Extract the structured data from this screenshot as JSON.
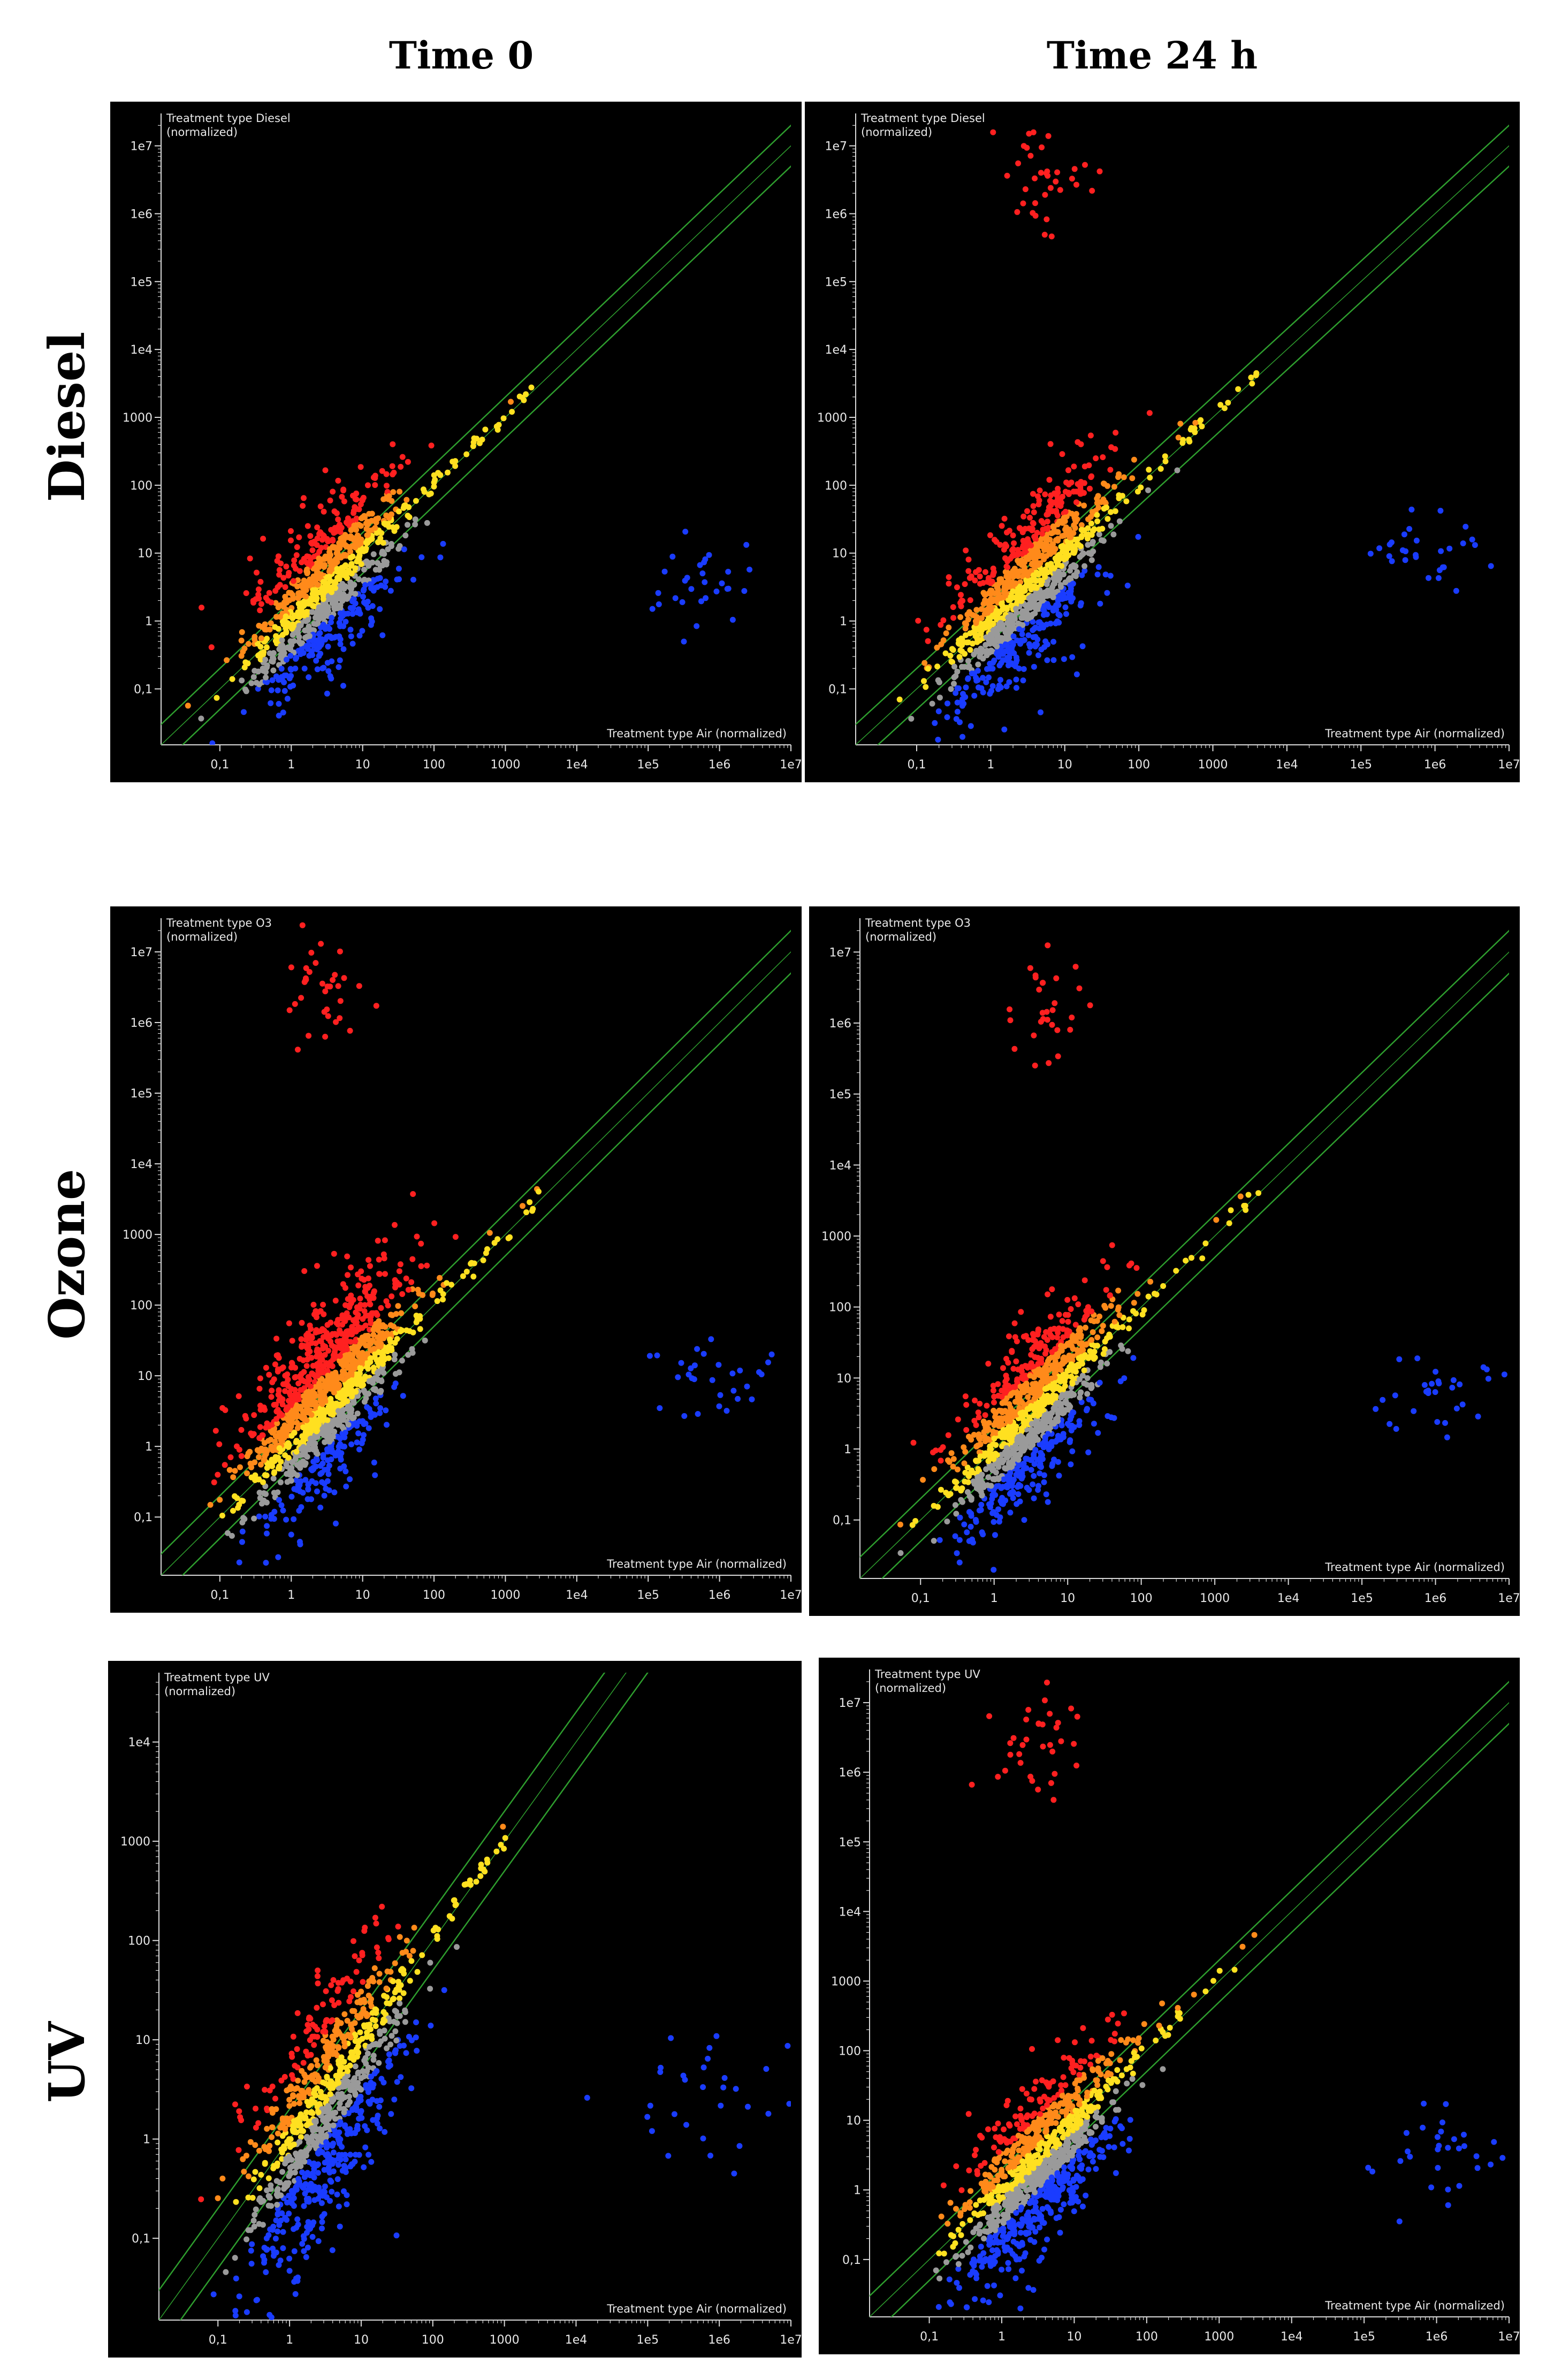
{
  "column_headers": [
    "Time 0",
    "Time 24 h"
  ],
  "row_labels": [
    "Diesel",
    "Ozone",
    "UV"
  ],
  "colors": {
    "background": "#000000",
    "axis": "#d9d9d9",
    "diagonal": "#2e9e2e",
    "high": "#ff2020",
    "mid_high": "#ff8a1a",
    "mid": "#ffe020",
    "neutral": "#9a9a9a",
    "low": "#1a3cff"
  },
  "chart_data": [
    {
      "type": "scatter",
      "row": "Diesel",
      "column": "Time 0",
      "y_label": "Treatment type Diesel\n(normalized)",
      "x_label": "Treatment type Air (normalized)",
      "x_ticks": [
        "0,1",
        "1",
        "10",
        "100",
        "1000",
        "1e4",
        "1e5",
        "1e6",
        "1e7"
      ],
      "y_ticks": [
        "1e7",
        "1e6",
        "1e5",
        "1e4",
        "1000",
        "100",
        "10",
        "1",
        "0,1"
      ],
      "xlim": [
        0.015,
        10000000
      ],
      "ylim": [
        0.015,
        30000000
      ],
      "scale": "log",
      "diagonal_band": true,
      "clusters": [
        {
          "name": "main",
          "x_center": 3,
          "x_spread": 0.55,
          "y_center": 3,
          "y_spread": 0.55,
          "count": 900
        },
        {
          "name": "upper-diagonal",
          "x_from": 10,
          "x_to": 2500,
          "count": 40
        },
        {
          "name": "right-outliers",
          "x_center": 500000,
          "x_spread": 0.45,
          "y_center": 3,
          "y_spread": 0.35,
          "count": 30
        }
      ]
    },
    {
      "type": "scatter",
      "row": "Diesel",
      "column": "Time 24 h",
      "y_label": "Treatment type Diesel\n(normalized)",
      "x_label": "Treatment type Air (normalized)",
      "x_ticks": [
        "0,1",
        "1",
        "10",
        "100",
        "1000",
        "1e4",
        "1e5",
        "1e6",
        "1e7"
      ],
      "y_ticks": [
        "1e7",
        "1e6",
        "1e5",
        "1e4",
        "1000",
        "100",
        "10",
        "1",
        "0,1"
      ],
      "xlim": [
        0.015,
        10000000
      ],
      "ylim": [
        0.015,
        30000000
      ],
      "scale": "log",
      "diagonal_band": true,
      "clusters": [
        {
          "name": "main",
          "x_center": 3,
          "x_spread": 0.55,
          "y_center": 3,
          "y_spread": 0.55,
          "count": 1100
        },
        {
          "name": "upper-diagonal",
          "x_from": 10,
          "x_to": 4000,
          "count": 45
        },
        {
          "name": "top-outliers",
          "x_center": 5,
          "x_spread": 0.3,
          "y_center": 3000000,
          "y_spread": 0.4,
          "count": 35
        },
        {
          "name": "right-outliers",
          "x_center": 800000,
          "x_spread": 0.5,
          "y_center": 10,
          "y_spread": 0.3,
          "count": 30
        }
      ]
    },
    {
      "type": "scatter",
      "row": "Ozone",
      "column": "Time 0",
      "y_label": "Treatment type O3\n(normalized)",
      "x_label": "Treatment type Air (normalized)",
      "x_ticks": [
        "0,1",
        "1",
        "10",
        "100",
        "1000",
        "1e4",
        "1e5",
        "1e6",
        "1e7"
      ],
      "y_ticks": [
        "1e7",
        "1e6",
        "1e5",
        "1e4",
        "1000",
        "100",
        "10",
        "1",
        "0,1"
      ],
      "xlim": [
        0.015,
        10000000
      ],
      "ylim": [
        0.015,
        30000000
      ],
      "scale": "log",
      "diagonal_band": true,
      "clusters": [
        {
          "name": "main",
          "x_center": 3,
          "x_spread": 0.55,
          "y_center": 5,
          "y_spread": 0.6,
          "count": 1300
        },
        {
          "name": "upper-diagonal",
          "x_from": 10,
          "x_to": 4000,
          "count": 45
        },
        {
          "name": "top-outliers",
          "x_center": 3,
          "x_spread": 0.3,
          "y_center": 3000000,
          "y_spread": 0.4,
          "count": 35
        },
        {
          "name": "right-outliers",
          "x_center": 800000,
          "x_spread": 0.5,
          "y_center": 10,
          "y_spread": 0.35,
          "count": 30
        }
      ]
    },
    {
      "type": "scatter",
      "row": "Ozone",
      "column": "Time 24 h",
      "y_label": "Treatment type O3\n(normalized)",
      "x_label": "Treatment type Air (normalized)",
      "x_ticks": [
        "0,1",
        "1",
        "10",
        "100",
        "1000",
        "1e4",
        "1e5",
        "1e6",
        "1e7"
      ],
      "y_ticks": [
        "1e7",
        "1e6",
        "1e5",
        "1e4",
        "1000",
        "100",
        "10",
        "1",
        "0,1"
      ],
      "xlim": [
        0.015,
        10000000
      ],
      "ylim": [
        0.015,
        30000000
      ],
      "scale": "log",
      "diagonal_band": true,
      "clusters": [
        {
          "name": "main",
          "x_center": 3,
          "x_spread": 0.55,
          "y_center": 3,
          "y_spread": 0.55,
          "count": 1100
        },
        {
          "name": "upper-diagonal",
          "x_from": 10,
          "x_to": 5000,
          "count": 40
        },
        {
          "name": "top-outliers",
          "x_center": 5,
          "x_spread": 0.3,
          "y_center": 2000000,
          "y_spread": 0.45,
          "count": 30
        },
        {
          "name": "right-outliers",
          "x_center": 1000000,
          "x_spread": 0.5,
          "y_center": 5,
          "y_spread": 0.3,
          "count": 30
        }
      ]
    },
    {
      "type": "scatter",
      "row": "UV",
      "column": "Time 0",
      "y_label": "Treatment type UV\n(normalized)",
      "x_label": "Treatment type Air (normalized)",
      "x_ticks": [
        "0,1",
        "1",
        "10",
        "100",
        "1000",
        "1e4",
        "1e5",
        "1e6",
        "1e7"
      ],
      "y_ticks": [
        "1e4",
        "1000",
        "100",
        "10",
        "1",
        "0,1"
      ],
      "xlim": [
        0.015,
        10000000
      ],
      "ylim": [
        0.015,
        50000
      ],
      "scale": "log",
      "diagonal_band": true,
      "clusters": [
        {
          "name": "main",
          "x_center": 3,
          "x_spread": 0.55,
          "y_center": 2,
          "y_spread": 0.55,
          "count": 1000
        },
        {
          "name": "upper-diagonal",
          "x_from": 10,
          "x_to": 1500,
          "count": 45
        },
        {
          "name": "right-outliers",
          "x_center": 800000,
          "x_spread": 0.5,
          "y_center": 3,
          "y_spread": 0.35,
          "count": 30
        }
      ]
    },
    {
      "type": "scatter",
      "row": "UV",
      "column": "Time 24 h",
      "y_label": "Treatment type UV\n(normalized)",
      "x_label": "Treatment type Air (normalized)",
      "x_ticks": [
        "0,1",
        "1",
        "10",
        "100",
        "1000",
        "1e4",
        "1e5",
        "1e6",
        "1e7"
      ],
      "y_ticks": [
        "1e7",
        "1e6",
        "1e5",
        "1e4",
        "1000",
        "100",
        "10",
        "1",
        "0,1"
      ],
      "xlim": [
        0.015,
        10000000
      ],
      "ylim": [
        0.015,
        30000000
      ],
      "scale": "log",
      "diagonal_band": true,
      "clusters": [
        {
          "name": "main",
          "x_center": 3,
          "x_spread": 0.55,
          "y_center": 2,
          "y_spread": 0.55,
          "count": 1100
        },
        {
          "name": "upper-diagonal",
          "x_from": 10,
          "x_to": 5000,
          "count": 40
        },
        {
          "name": "top-outliers",
          "x_center": 3,
          "x_spread": 0.35,
          "y_center": 2000000,
          "y_spread": 0.45,
          "count": 35
        },
        {
          "name": "right-outliers",
          "x_center": 1000000,
          "x_spread": 0.5,
          "y_center": 3,
          "y_spread": 0.35,
          "count": 30
        }
      ]
    }
  ]
}
